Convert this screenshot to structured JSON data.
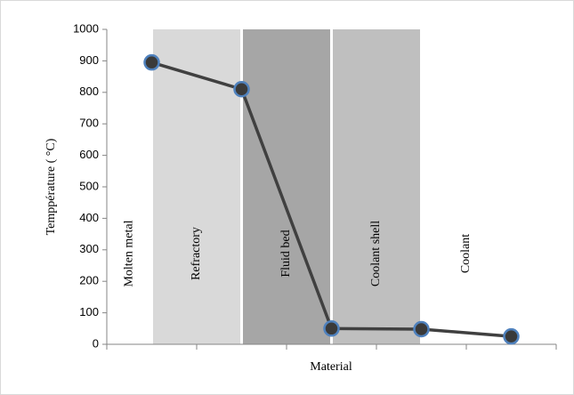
{
  "chart_data": {
    "type": "line",
    "y_label": "Temppérature ( °C)",
    "x_label": "Material",
    "categories": [
      null,
      null,
      null,
      null,
      null
    ],
    "regions": [
      {
        "label": "Molten metal"
      },
      {
        "label": "Refractory",
        "color": "#d9d9d9"
      },
      {
        "label": "Fluid bed",
        "color": "#a6a6a6"
      },
      {
        "label": "Coolant shell",
        "color": "#bfbfbf"
      },
      {
        "label": "Coolant"
      }
    ],
    "series": [
      {
        "color": "#404040",
        "marker_fill": "#3a3a3a",
        "marker_edge": "#4f81bd",
        "values": [
          895,
          810,
          50,
          48,
          25
        ]
      }
    ],
    "ylim": [
      0,
      1000
    ],
    "yticks": [
      0,
      100,
      200,
      300,
      400,
      500,
      600,
      700,
      800,
      900,
      1000
    ]
  }
}
